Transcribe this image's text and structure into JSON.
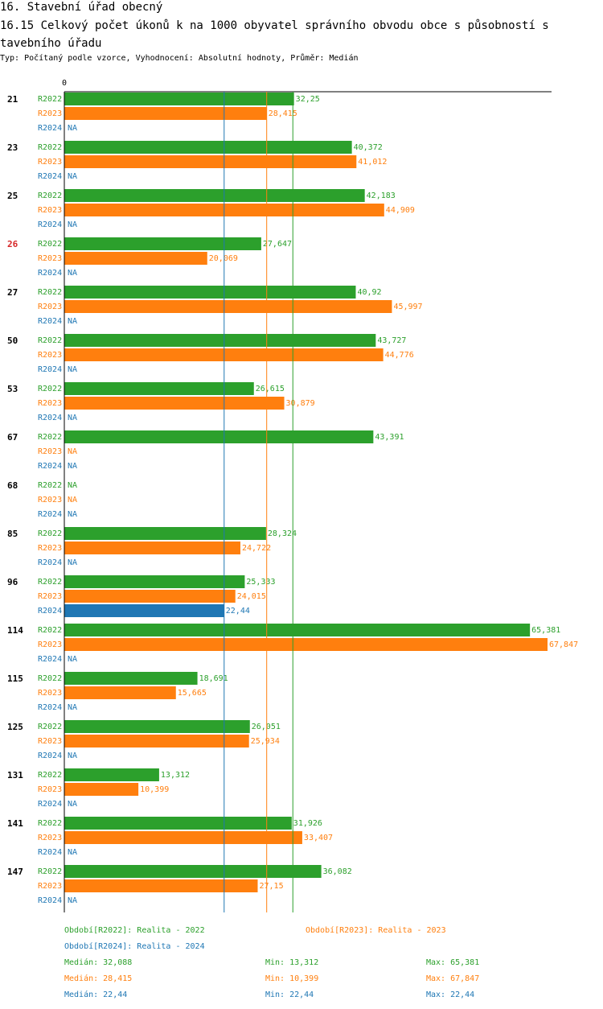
{
  "header": {
    "title": "16. Stavební úřad obecný",
    "subtitle": "16.15 Celkový počet úkonů k na 1000 obyvatel správního obvodu obce s působností s tavebního úřadu",
    "type_line": "Typ: Počítaný podle vzorce, Vyhodnocení: Absolutní hodnoty, Průměr: Medián"
  },
  "chart_data": {
    "type": "bar",
    "orientation": "horizontal",
    "axis_zero_label": "0",
    "xlim": [
      0,
      67.847
    ],
    "series": [
      {
        "key": "R2022",
        "name": "R2022",
        "color": "#2ca02c"
      },
      {
        "key": "R2023",
        "name": "R2023",
        "color": "#ff7f0e"
      },
      {
        "key": "R2024",
        "name": "R2024",
        "color": "#1f77b4"
      }
    ],
    "groups": [
      {
        "label": "21",
        "highlight": false,
        "values": [
          32.25,
          28.415,
          null
        ],
        "labels": [
          "32,25",
          "28,415",
          "NA"
        ]
      },
      {
        "label": "23",
        "highlight": false,
        "values": [
          40.372,
          41.012,
          null
        ],
        "labels": [
          "40,372",
          "41,012",
          "NA"
        ]
      },
      {
        "label": "25",
        "highlight": false,
        "values": [
          42.183,
          44.909,
          null
        ],
        "labels": [
          "42,183",
          "44,909",
          "NA"
        ]
      },
      {
        "label": "26",
        "highlight": true,
        "values": [
          27.647,
          20.069,
          null
        ],
        "labels": [
          "27,647",
          "20,069",
          "NA"
        ]
      },
      {
        "label": "27",
        "highlight": false,
        "values": [
          40.92,
          45.997,
          null
        ],
        "labels": [
          "40,92",
          "45,997",
          "NA"
        ]
      },
      {
        "label": "50",
        "highlight": false,
        "values": [
          43.727,
          44.776,
          null
        ],
        "labels": [
          "43,727",
          "44,776",
          "NA"
        ]
      },
      {
        "label": "53",
        "highlight": false,
        "values": [
          26.615,
          30.879,
          null
        ],
        "labels": [
          "26,615",
          "30,879",
          "NA"
        ]
      },
      {
        "label": "67",
        "highlight": false,
        "values": [
          43.391,
          null,
          null
        ],
        "labels": [
          "43,391",
          "NA",
          "NA"
        ]
      },
      {
        "label": "68",
        "highlight": false,
        "values": [
          null,
          null,
          null
        ],
        "labels": [
          "NA",
          "NA",
          "NA"
        ]
      },
      {
        "label": "85",
        "highlight": false,
        "values": [
          28.324,
          24.722,
          null
        ],
        "labels": [
          "28,324",
          "24,722",
          "NA"
        ]
      },
      {
        "label": "96",
        "highlight": false,
        "values": [
          25.333,
          24.015,
          22.44
        ],
        "labels": [
          "25,333",
          "24,015",
          "22,44"
        ]
      },
      {
        "label": "114",
        "highlight": false,
        "values": [
          65.381,
          67.847,
          null
        ],
        "labels": [
          "65,381",
          "67,847",
          "NA"
        ]
      },
      {
        "label": "115",
        "highlight": false,
        "values": [
          18.691,
          15.665,
          null
        ],
        "labels": [
          "18,691",
          "15,665",
          "NA"
        ]
      },
      {
        "label": "125",
        "highlight": false,
        "values": [
          26.051,
          25.934,
          null
        ],
        "labels": [
          "26,051",
          "25,934",
          "NA"
        ]
      },
      {
        "label": "131",
        "highlight": false,
        "values": [
          13.312,
          10.399,
          null
        ],
        "labels": [
          "13,312",
          "10,399",
          "NA"
        ]
      },
      {
        "label": "141",
        "highlight": false,
        "values": [
          31.926,
          33.407,
          null
        ],
        "labels": [
          "31,926",
          "33,407",
          "NA"
        ]
      },
      {
        "label": "147",
        "highlight": false,
        "values": [
          36.082,
          27.15,
          null
        ],
        "labels": [
          "36,082",
          "27,15",
          "NA"
        ]
      }
    ],
    "median_lines": [
      {
        "series": "R2022",
        "value": 32.088
      },
      {
        "series": "R2023",
        "value": 28.415
      },
      {
        "series": "R2024",
        "value": 22.44
      }
    ]
  },
  "legend": {
    "r2022": "Období[R2022]: Realita - 2022",
    "r2023": "Období[R2023]: Realita - 2023",
    "r2024": "Období[R2024]: Realita - 2024"
  },
  "stats": [
    {
      "median": "Medián: 32,088",
      "min": "Min: 13,312",
      "max": "Max: 65,381"
    },
    {
      "median": "Medián: 28,415",
      "min": "Min: 10,399",
      "max": "Max: 67,847"
    },
    {
      "median": "Medián: 22,44",
      "min": "Min: 22,44",
      "max": "Max: 22,44"
    }
  ]
}
